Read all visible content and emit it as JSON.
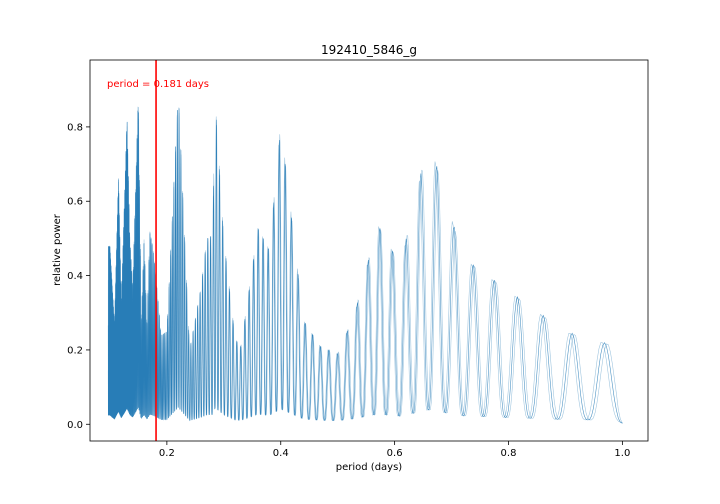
{
  "chart_data": {
    "type": "line",
    "title": "192410_5846_g",
    "xlabel": "period (days)",
    "ylabel": "relative power",
    "xlim": [
      0.065,
      1.045
    ],
    "ylim": [
      -0.045,
      0.98
    ],
    "xticks": [
      0.2,
      0.4,
      0.6,
      0.8,
      1.0
    ],
    "xtick_labels": [
      "0.2",
      "0.4",
      "0.6",
      "0.8",
      "1.0"
    ],
    "yticks": [
      0.0,
      0.2,
      0.4,
      0.6,
      0.8
    ],
    "ytick_labels": [
      "0.0",
      "0.2",
      "0.4",
      "0.6",
      "0.8"
    ],
    "grid": false,
    "series_color": "#1f77b4",
    "marker": {
      "x": 0.181,
      "color": "#ff0000",
      "label": "period = 0.181 days"
    },
    "series": [
      {
        "x": [
          0.1,
          0.108,
          0.115,
          0.12,
          0.13,
          0.135,
          0.14,
          0.15,
          0.155,
          0.16,
          0.165,
          0.17,
          0.175,
          0.18,
          0.19,
          0.2,
          0.22,
          0.24,
          0.26,
          0.27,
          0.28,
          0.285,
          0.3,
          0.32,
          0.33,
          0.36,
          0.38,
          0.4,
          0.44,
          0.47,
          0.5,
          0.53,
          0.57,
          0.61,
          0.66,
          0.72,
          0.8,
          0.9,
          0.99,
          1.0
        ],
        "y": [
          0.48,
          0.27,
          0.67,
          0.33,
          0.83,
          0.5,
          0.37,
          0.9,
          0.28,
          0.5,
          0.27,
          0.52,
          0.48,
          0.41,
          0.24,
          0.25,
          0.9,
          0.2,
          0.37,
          0.5,
          0.51,
          0.87,
          0.5,
          0.23,
          0.21,
          0.53,
          0.47,
          0.81,
          0.28,
          0.21,
          0.19,
          0.3,
          0.54,
          0.43,
          0.77,
          0.45,
          0.36,
          0.25,
          0.21,
          0.05
        ]
      }
    ]
  }
}
